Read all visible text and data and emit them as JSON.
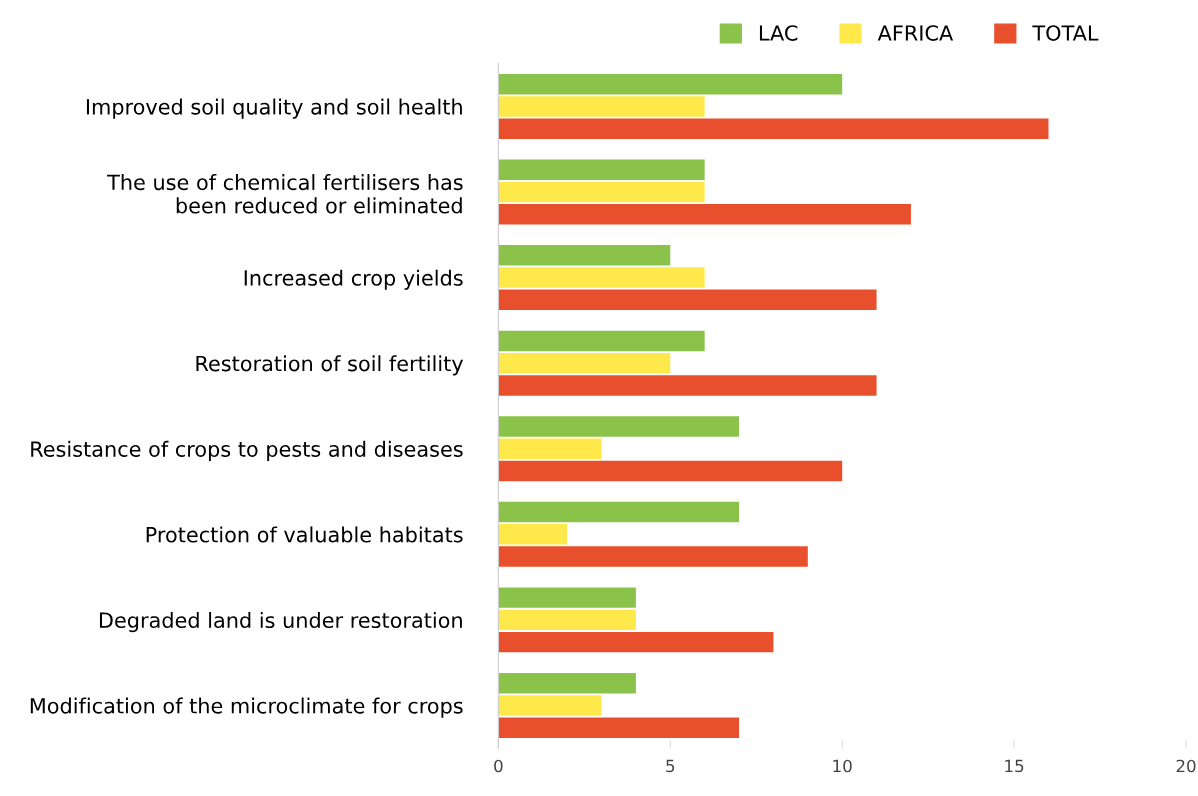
{
  "chart_data": {
    "type": "bar",
    "orientation": "horizontal",
    "categories": [
      "Improved soil quality and soil health",
      "The use of chemical fertilisers has\nbeen reduced or eliminated",
      "Increased crop yields",
      "Restoration of soil fertility",
      "Resistance of crops to pests and diseases",
      "Protection of valuable habitats",
      "Degraded land is under restoration",
      "Modification of the microclimate for crops"
    ],
    "series": [
      {
        "name": "LAC",
        "color": "#8bc34a",
        "values": [
          10,
          6,
          5,
          6,
          7,
          7,
          4,
          4
        ]
      },
      {
        "name": "AFRICA",
        "color": "#ffe84a",
        "values": [
          6,
          6,
          6,
          5,
          3,
          2,
          4,
          3
        ]
      },
      {
        "name": "TOTAL",
        "color": "#e8502d",
        "values": [
          16,
          12,
          11,
          11,
          10,
          9,
          8,
          7
        ]
      }
    ],
    "xlim": [
      0,
      20
    ],
    "xticks": [
      0,
      5,
      10,
      15,
      20
    ],
    "grid": false,
    "legend": "top right"
  }
}
